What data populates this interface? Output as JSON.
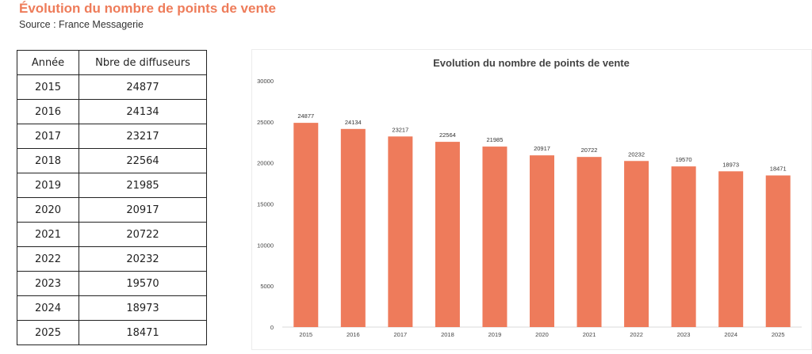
{
  "page": {
    "title": "Évolution du nombre de points de vente",
    "source": "Source : France Messagerie"
  },
  "table": {
    "headers": [
      "Année",
      "Nbre de diffuseurs"
    ],
    "rows": [
      [
        "2015",
        "24877"
      ],
      [
        "2016",
        "24134"
      ],
      [
        "2017",
        "23217"
      ],
      [
        "2018",
        "22564"
      ],
      [
        "2019",
        "21985"
      ],
      [
        "2020",
        "20917"
      ],
      [
        "2021",
        "20722"
      ],
      [
        "2022",
        "20232"
      ],
      [
        "2023",
        "19570"
      ],
      [
        "2024",
        "18973"
      ],
      [
        "2025",
        "18471"
      ]
    ]
  },
  "chart_data": {
    "type": "bar",
    "title": "Evolution du nombre de points de vente",
    "categories": [
      "2015",
      "2016",
      "2017",
      "2018",
      "2019",
      "2020",
      "2021",
      "2022",
      "2023",
      "2024",
      "2025"
    ],
    "values": [
      24877,
      24134,
      23217,
      22564,
      21985,
      20917,
      20722,
      20232,
      19570,
      18973,
      18471
    ],
    "ylim": [
      0,
      30000
    ],
    "yticks": [
      0,
      5000,
      10000,
      15000,
      20000,
      25000,
      30000
    ],
    "grid": false,
    "legend": "none",
    "bar_color": "#ee7b5b"
  }
}
